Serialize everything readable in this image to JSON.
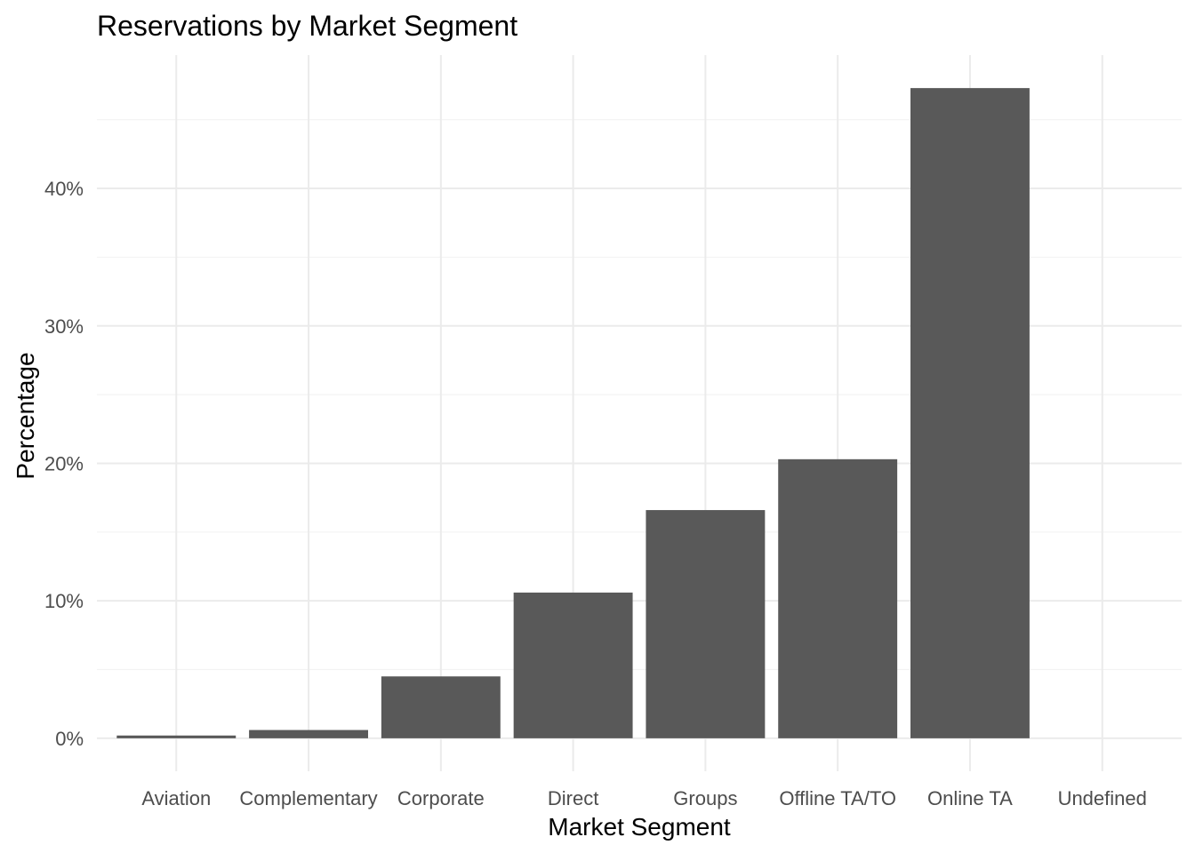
{
  "chart_data": {
    "type": "bar",
    "title": "Reservations by Market Segment",
    "xlabel": "Market Segment",
    "ylabel": "Percentage",
    "categories": [
      "Aviation",
      "Complementary",
      "Corporate",
      "Direct",
      "Groups",
      "Offline TA/TO",
      "Online TA",
      "Undefined"
    ],
    "values": [
      0.2,
      0.6,
      4.5,
      10.6,
      16.6,
      20.3,
      47.3,
      0.0
    ],
    "y_ticks": [
      "0%",
      "10%",
      "20%",
      "30%",
      "40%"
    ],
    "y_tick_values": [
      0,
      10,
      20,
      30,
      40
    ],
    "ylim": [
      -2.4,
      49.7
    ],
    "y_unit": "%",
    "grid": true,
    "bar_color": "#595959"
  }
}
